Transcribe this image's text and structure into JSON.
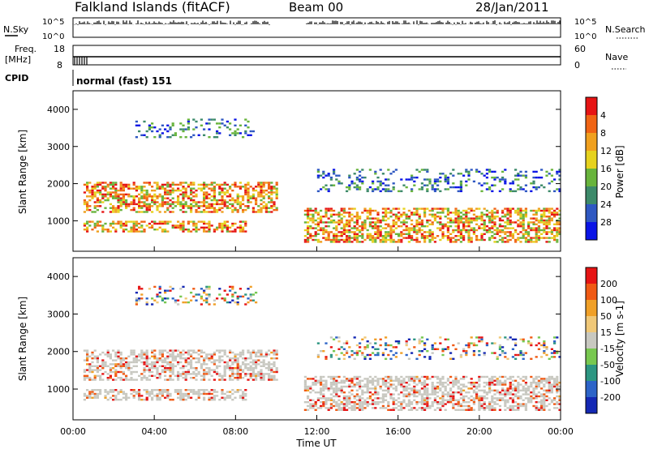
{
  "header": {
    "title": "Falkland Islands (fitACF)",
    "beam": "Beam 00",
    "date": "28/Jan/2011"
  },
  "status_panels": {
    "nsky_label": "N.Sky",
    "nsearch_label": "N.Search",
    "freq_label": "Freq.",
    "freq_unit": "[MHz]",
    "nave_label": "Nave",
    "cpid_label": "CPID",
    "cpid_value": "normal (fast) 151",
    "noise_ticks_left": [
      "10^5",
      "10^0"
    ],
    "noise_ticks_right": [
      "10^5",
      "10^0"
    ],
    "freq_ticks": [
      "18",
      "8"
    ],
    "nave_ticks": [
      "60",
      "0"
    ]
  },
  "chart_data": [
    {
      "type": "heatmap",
      "panel": "power",
      "ylabel": "Slant Range [km]",
      "yticks": [
        1000,
        2000,
        3000,
        4000
      ],
      "ylim": [
        180,
        4500
      ],
      "xlim": [
        0,
        24
      ],
      "colorbar": {
        "label": "Power [dB]",
        "ticks": [
          "4",
          "8",
          "12",
          "16",
          "20",
          "24",
          "28"
        ],
        "colors": [
          "#0a14e6",
          "#2f58c2",
          "#3d8a6a",
          "#68b43c",
          "#e6d21e",
          "#f0a01e",
          "#f06414",
          "#e61414"
        ]
      },
      "echo_regions": [
        {
          "t0": 0.5,
          "t1": 10.0,
          "center_km": 1650,
          "width_km": 800,
          "level": "high"
        },
        {
          "t0": 0.5,
          "t1": 8.5,
          "center_km": 850,
          "width_km": 300,
          "level": "high"
        },
        {
          "t0": 3.0,
          "t1": 9.0,
          "center_km": 3500,
          "width_km": 500,
          "level": "low"
        },
        {
          "t0": 11.3,
          "t1": 24.0,
          "center_km": 900,
          "width_km": 900,
          "level": "high"
        },
        {
          "t0": 12.0,
          "t1": 24.0,
          "center_km": 2100,
          "width_km": 600,
          "level": "low"
        }
      ]
    },
    {
      "type": "heatmap",
      "panel": "velocity",
      "ylabel": "Slant Range [km]",
      "xlabel": "Time UT",
      "yticks": [
        1000,
        2000,
        3000,
        4000
      ],
      "ylim": [
        180,
        4500
      ],
      "xlim": [
        0,
        24
      ],
      "xticks": [
        "00:00",
        "04:00",
        "08:00",
        "12:00",
        "16:00",
        "20:00",
        "00:00"
      ],
      "colorbar": {
        "label": "Velocity [m s-1]",
        "ticks": [
          "200",
          "100",
          "50",
          "15",
          "-15",
          "-50",
          "-100",
          "-200"
        ],
        "colors": [
          "#1428b4",
          "#2d64c8",
          "#2d9682",
          "#78c850",
          "#c8c8c0",
          "#f0c878",
          "#f0a028",
          "#f05a14",
          "#e61414"
        ]
      },
      "echo_regions": [
        {
          "t0": 0.5,
          "t1": 10.0,
          "center_km": 1650,
          "width_km": 800,
          "level": "slow"
        },
        {
          "t0": 0.5,
          "t1": 8.5,
          "center_km": 850,
          "width_km": 300,
          "level": "slow"
        },
        {
          "t0": 3.0,
          "t1": 9.0,
          "center_km": 3500,
          "width_km": 500,
          "level": "mixed"
        },
        {
          "t0": 11.3,
          "t1": 24.0,
          "center_km": 900,
          "width_km": 900,
          "level": "slow"
        },
        {
          "t0": 12.0,
          "t1": 24.0,
          "center_km": 2100,
          "width_km": 600,
          "level": "mixed"
        }
      ]
    }
  ]
}
